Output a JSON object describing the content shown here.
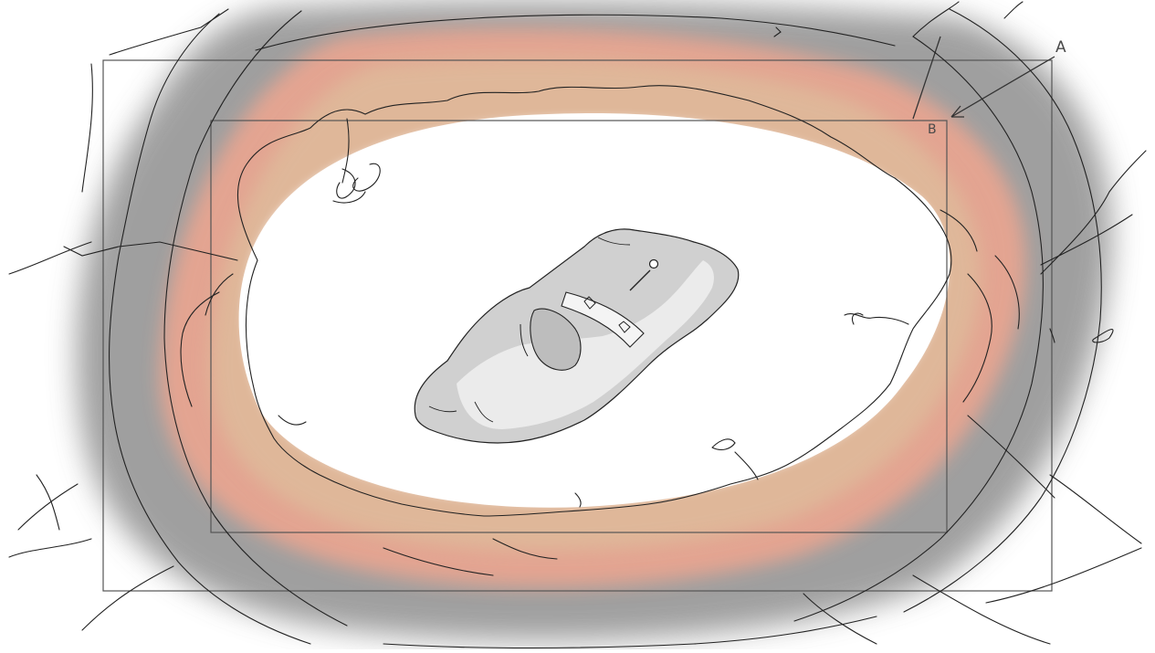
{
  "drawing": {
    "frame_labels": {
      "outer": "A",
      "inner": "B"
    },
    "colors": {
      "smoke": "#8f8f8f",
      "fire": "#eba590",
      "fire_glow": "#dcc7a0",
      "ink": "#222222",
      "frame": "#555555",
      "ship": "#d0d0d0"
    }
  }
}
